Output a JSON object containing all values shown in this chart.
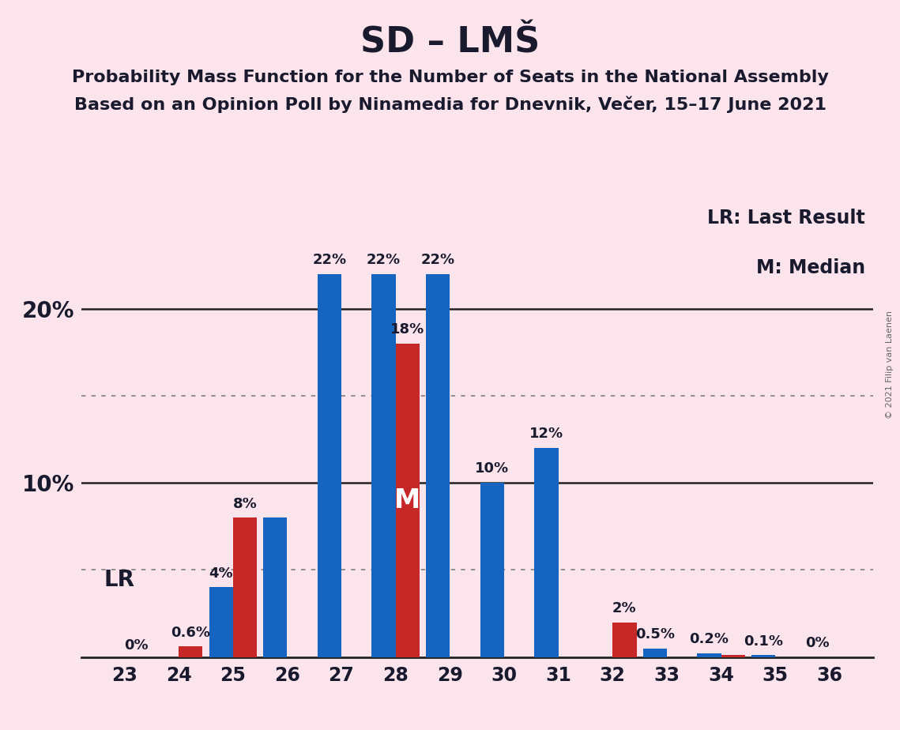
{
  "title": "SD – LMŠ",
  "subtitle1": "Probability Mass Function for the Number of Seats in the National Assembly",
  "subtitle2": "Based on an Opinion Poll by Ninamedia for Dnevnik, Večer, 15–17 June 2021",
  "copyright": "© 2021 Filip van Laenen",
  "seats": [
    23,
    24,
    25,
    26,
    27,
    28,
    29,
    30,
    31,
    32,
    33,
    34,
    35,
    36
  ],
  "blue_values": [
    0.0,
    0.0,
    4.0,
    8.0,
    22.0,
    22.0,
    22.0,
    10.0,
    12.0,
    0.0,
    0.5,
    0.2,
    0.1,
    0.0
  ],
  "red_values": [
    0.0,
    0.6,
    8.0,
    0.0,
    0.0,
    18.0,
    0.0,
    0.0,
    0.0,
    2.0,
    0.0,
    0.1,
    0.0,
    0.0
  ],
  "blue_labels": [
    "",
    "",
    "4%",
    "",
    "22%",
    "22%",
    "22%",
    "10%",
    "12%",
    "",
    "0.5%",
    "0.2%",
    "0.1%",
    "0%"
  ],
  "red_labels": [
    "0%",
    "0.6%",
    "8%",
    "",
    "",
    "18%",
    "",
    "",
    "",
    "2%",
    "",
    "",
    "",
    ""
  ],
  "median_seat": 28,
  "lr_seat": 23,
  "background_color": "#fce4ec",
  "blue_color": "#1565c0",
  "red_color": "#c62828",
  "legend_lr": "LR: Last Result",
  "legend_m": "M: Median",
  "ylim": [
    0,
    26
  ],
  "dotted_lines": [
    5.0,
    15.0
  ],
  "solid_lines": [
    10.0,
    20.0
  ],
  "bar_width": 0.44,
  "figsize": [
    11.39,
    9.24
  ],
  "dpi": 100,
  "title_fontsize": 32,
  "subtitle_fontsize": 16,
  "label_fontsize": 13,
  "ytick_fontsize": 20,
  "xtick_fontsize": 17,
  "legend_fontsize": 17,
  "lr_fontsize": 20,
  "m_fontsize": 24
}
